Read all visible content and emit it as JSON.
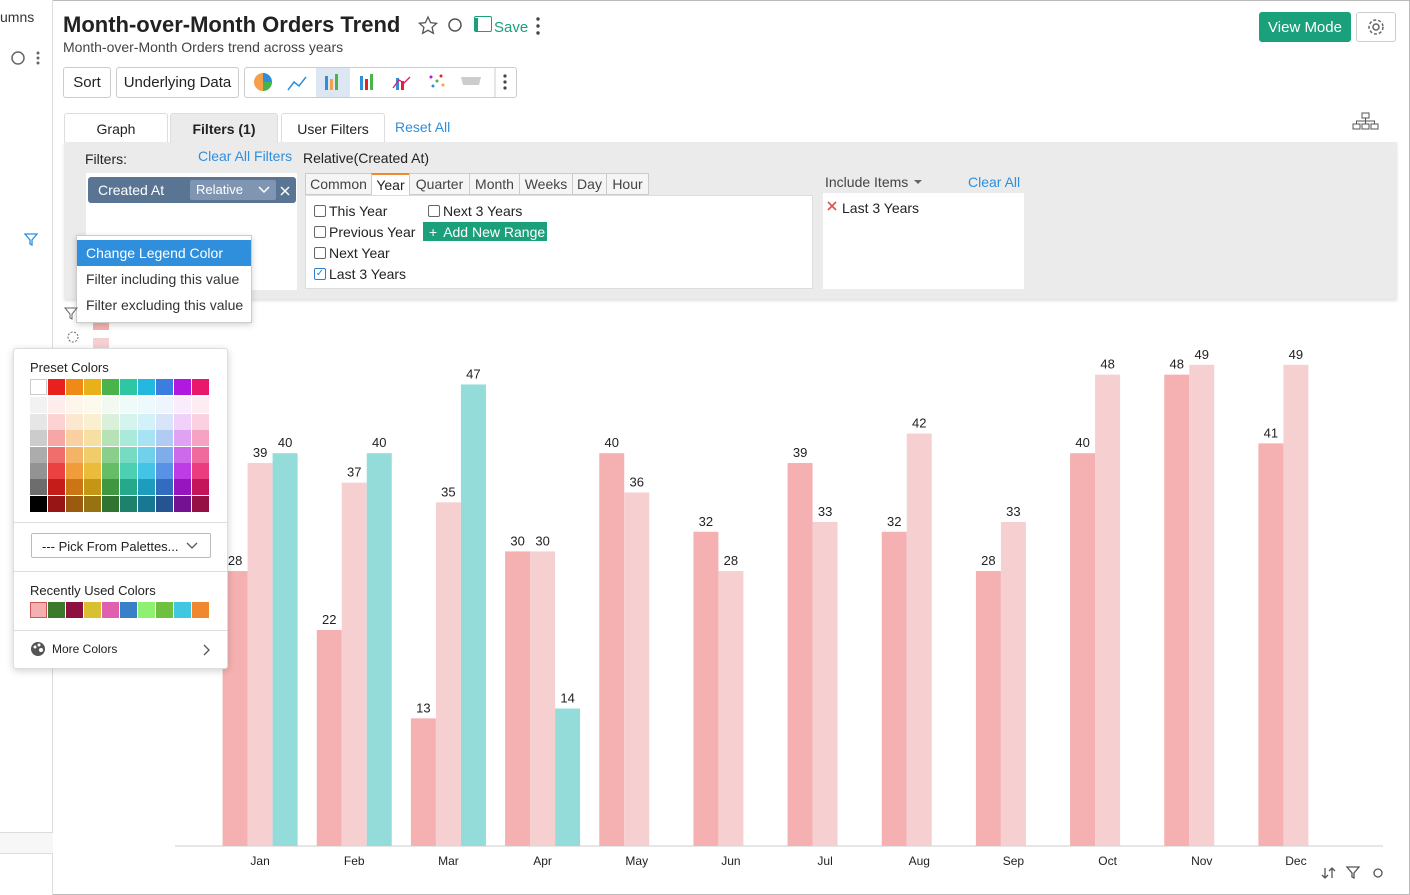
{
  "sidebar": {
    "label": "umns"
  },
  "header": {
    "title": "Month-over-Month Orders Trend",
    "subtitle": "Month-over-Month Orders trend across years",
    "save": "Save",
    "view_mode": "View Mode"
  },
  "toolbar": {
    "sort": "Sort",
    "underlying_data": "Underlying Data"
  },
  "tabs": [
    "Graph",
    "Filters (1)",
    "User Filters"
  ],
  "reset_all": "Reset All",
  "filters": {
    "label": "Filters:",
    "clear_all_filters": "Clear All Filters",
    "heading": "Relative(Created At)",
    "chip_field": "Created At",
    "chip_mode": "Relative",
    "periods": [
      "Common",
      "Year",
      "Quarter",
      "Month",
      "Weeks",
      "Day",
      "Hour"
    ],
    "options": [
      "This Year",
      "Previous Year",
      "Next Year",
      "Last 3 Years",
      "Next 3 Years"
    ],
    "add_new_range": "Add New Range",
    "include_items": "Include Items",
    "clear_all": "Clear All",
    "included": [
      "Last 3 Years"
    ]
  },
  "context_menu": [
    "Change Legend Color",
    "Filter including this value",
    "Filter excluding this value"
  ],
  "color_picker": {
    "preset_colors": "Preset Colors",
    "palette_select": "--- Pick From Palettes...",
    "recently_used": "Recently Used Colors",
    "more_colors": "More Colors"
  },
  "chart_data": {
    "type": "bar",
    "categories": [
      "Jan",
      "Feb",
      "Mar",
      "Apr",
      "May",
      "Jun",
      "Jul",
      "Aug",
      "Sep",
      "Oct",
      "Nov",
      "Dec"
    ],
    "series": [
      {
        "color": "#f5b1b1",
        "values": [
          28,
          22,
          13,
          30,
          40,
          32,
          39,
          32,
          28,
          40,
          48,
          41
        ]
      },
      {
        "color": "#f6d0d1",
        "values": [
          39,
          37,
          35,
          30,
          36,
          28,
          33,
          42,
          33,
          48,
          49,
          49
        ]
      },
      {
        "color": "#94dcda",
        "values": [
          40,
          40,
          47,
          14,
          null,
          null,
          null,
          null,
          null,
          null,
          null,
          null
        ]
      }
    ],
    "ylim": [
      0,
      50
    ]
  }
}
